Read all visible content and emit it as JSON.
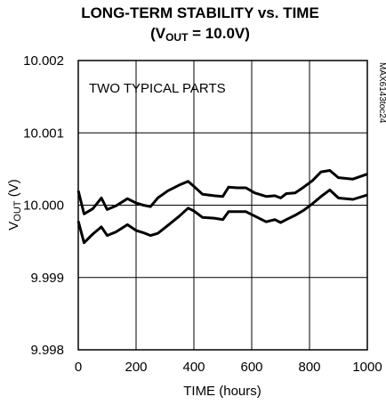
{
  "chart_data": {
    "type": "line",
    "title_line1": "LONG-TERM STABILITY vs. TIME",
    "title_line2_pre": "(V",
    "title_line2_sub": "OUT",
    "title_line2_post": " = 10.0V)",
    "xlabel": "TIME (hours)",
    "ylabel_main": "V",
    "ylabel_sub": "OUT",
    "ylabel_post": " (V)",
    "annotation": "TWO TYPICAL PARTS",
    "side_code": "MAX6143toc24",
    "xlim": [
      0,
      1000
    ],
    "ylim": [
      9.998,
      10.002
    ],
    "x_ticks": [
      0,
      200,
      400,
      600,
      800,
      1000
    ],
    "x_tick_labels": [
      "0",
      "200",
      "400",
      "600",
      "800",
      "1000"
    ],
    "y_ticks": [
      9.998,
      9.999,
      10.0,
      10.001,
      10.002
    ],
    "y_tick_labels": [
      "9.998",
      "9.999",
      "10.000",
      "10.001",
      "10.002"
    ],
    "grid": true,
    "series": [
      {
        "x": [
          0,
          20,
          50,
          80,
          100,
          130,
          170,
          200,
          225,
          250,
          275,
          310,
          350,
          380,
          400,
          430,
          470,
          500,
          520,
          550,
          580,
          610,
          650,
          680,
          700,
          720,
          750,
          780,
          810,
          840,
          870,
          900,
          950,
          1000
        ],
        "values": [
          10.0002,
          9.99988,
          9.99995,
          10.0001,
          9.99994,
          9.99999,
          10.00009,
          10.00003,
          10.0,
          9.99998,
          10.0001,
          10.0002,
          10.00028,
          10.00033,
          10.00026,
          10.00015,
          10.00013,
          10.00012,
          10.00025,
          10.00024,
          10.00024,
          10.00017,
          10.00012,
          10.00013,
          10.0001,
          10.00016,
          10.00017,
          10.00025,
          10.00034,
          10.00046,
          10.00048,
          10.00038,
          10.00036,
          10.00043
        ]
      },
      {
        "x": [
          0,
          20,
          50,
          80,
          100,
          130,
          170,
          200,
          225,
          250,
          275,
          310,
          350,
          380,
          400,
          430,
          470,
          500,
          520,
          550,
          580,
          610,
          650,
          680,
          700,
          720,
          750,
          780,
          810,
          840,
          870,
          900,
          950,
          1000
        ],
        "values": [
          9.99978,
          9.99948,
          9.9996,
          9.9997,
          9.99958,
          9.99963,
          9.99973,
          9.99965,
          9.99962,
          9.99958,
          9.99961,
          9.99972,
          9.99985,
          9.99996,
          9.99992,
          9.99983,
          9.99982,
          9.9998,
          9.99991,
          9.99991,
          9.99991,
          9.99985,
          9.99977,
          9.9998,
          9.99976,
          9.9998,
          9.99986,
          9.99993,
          10.00002,
          10.00012,
          10.00021,
          10.0001,
          10.00008,
          10.00014
        ]
      }
    ]
  }
}
